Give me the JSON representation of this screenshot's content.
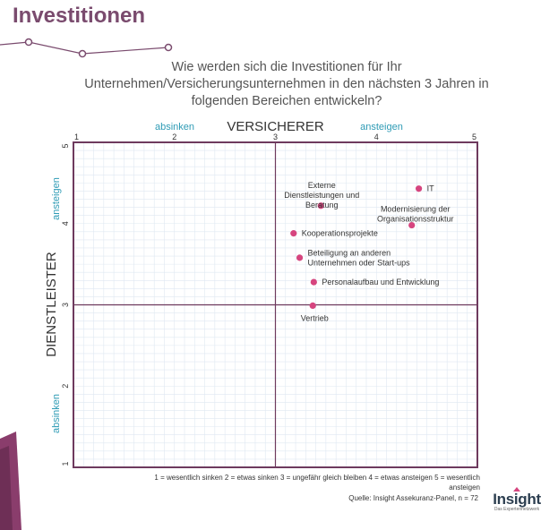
{
  "page": {
    "title": "Investitionen",
    "question_lines": [
      "Wie werden sich die Investitionen für Ihr",
      "Unternehmen/Versicherungsunternehmen in den nächsten 3 Jahren in",
      "folgenden Bereichen entwickeln?"
    ],
    "legend_note_lines": [
      "1 = wesentlich sinken 2 = etwas sinken 3 = ungefähr gleich bleiben 4 = etwas ansteigen 5 = wesentlich",
      "ansteigen"
    ],
    "source": "Quelle: Insight Assekuranz-Panel, n = 72",
    "logo_text": "Insight",
    "logo_subtitle": "Das Expertennetzwerk",
    "colors": {
      "title": "#7a4b6e",
      "axis": "#6e3a5e",
      "point": "#d6457f",
      "axis_label": "#2e9bb5",
      "grid": "#dfe8f2"
    }
  },
  "chart_data": {
    "type": "scatter",
    "xlabel": "VERSICHERER",
    "ylabel": "DIENSTLEISTER",
    "xlim": [
      1,
      5
    ],
    "ylim": [
      1,
      5
    ],
    "x_ticks": [
      "1",
      "2",
      "3",
      "4",
      "5"
    ],
    "y_ticks": [
      "1",
      "2",
      "3",
      "4",
      "5"
    ],
    "quadrant_lines": {
      "x": 3,
      "y": 3
    },
    "x_axis_annotations": {
      "low": "absinken",
      "high": "ansteigen"
    },
    "y_axis_annotations": {
      "low": "absinken",
      "high": "ansteigen"
    },
    "grid": true,
    "points": [
      {
        "label_lines": [
          "IT"
        ],
        "x": 4.42,
        "y": 4.43,
        "label_pos": "right"
      },
      {
        "label_lines": [
          "Modernisierung der",
          "Organisationsstruktur"
        ],
        "x": 4.35,
        "y": 3.98,
        "label_pos": "above-left"
      },
      {
        "label_lines": [
          "Externe",
          "Dienstleistungen und",
          "Beratung"
        ],
        "x": 3.45,
        "y": 4.22,
        "label_pos": "above"
      },
      {
        "label_lines": [
          "Kooperationsprojekte"
        ],
        "x": 3.18,
        "y": 3.88,
        "label_pos": "right"
      },
      {
        "label_lines": [
          "Beteiligung an anderen",
          "Unternehmen oder Start-ups"
        ],
        "x": 3.24,
        "y": 3.58,
        "label_pos": "right"
      },
      {
        "label_lines": [
          "Personalaufbau und Entwicklung"
        ],
        "x": 3.38,
        "y": 3.28,
        "label_pos": "right"
      },
      {
        "label_lines": [
          "Vertrieb"
        ],
        "x": 3.37,
        "y": 2.99,
        "label_pos": "below"
      }
    ]
  }
}
